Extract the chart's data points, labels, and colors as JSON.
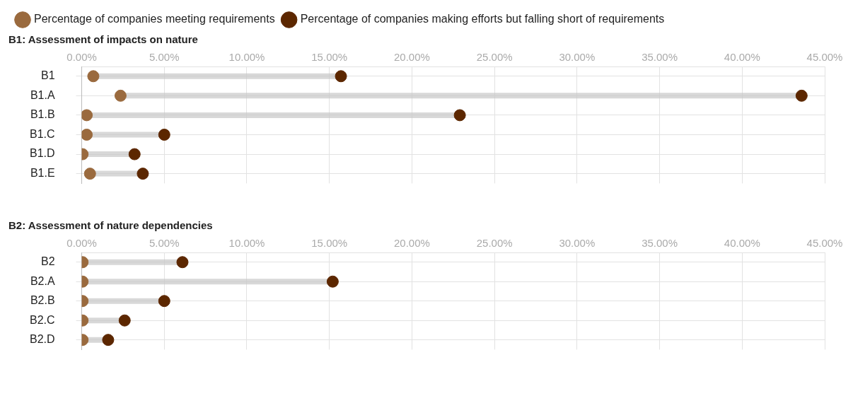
{
  "chart_data": [
    {
      "type": "scatter",
      "orientation": "horizontal",
      "title": "B1: Assessment of impacts on nature",
      "legend": "top",
      "grid": true,
      "marker": "circle",
      "categories": [
        "B1",
        "B1.A",
        "B1.B",
        "B1.C",
        "B1.D",
        "B1.E"
      ],
      "xlim": [
        0,
        45
      ],
      "xticks": [
        {
          "value": 0,
          "label": "0.00%"
        },
        {
          "value": 5,
          "label": "5.00%"
        },
        {
          "value": 10,
          "label": "10.00%"
        },
        {
          "value": 15,
          "label": "15.00%"
        },
        {
          "value": 20,
          "label": "20.00%"
        },
        {
          "value": 25,
          "label": "25.00%"
        },
        {
          "value": 30,
          "label": "30.00%"
        },
        {
          "value": 35,
          "label": "35.00%"
        },
        {
          "value": 40,
          "label": "40.00%"
        },
        {
          "value": 45,
          "label": "45.00%"
        }
      ],
      "series": [
        {
          "name": "Percentage of companies meeting requirements",
          "color": "#9a6a3e",
          "values": [
            0.7,
            2.35,
            0.3,
            0.3,
            0.05,
            0.5
          ]
        },
        {
          "name": "Percentage of companies making efforts but falling short of requirements",
          "color": "#5c2700",
          "values": [
            15.7,
            43.6,
            22.9,
            5.0,
            3.2,
            3.7
          ]
        }
      ]
    },
    {
      "type": "scatter",
      "orientation": "horizontal",
      "title": "B2: Assessment of nature dependencies",
      "grid": true,
      "marker": "circle",
      "categories": [
        "B2",
        "B2.A",
        "B2.B",
        "B2.C",
        "B2.D"
      ],
      "xlim": [
        0,
        45
      ],
      "xticks": [
        {
          "value": 0,
          "label": "0.00%"
        },
        {
          "value": 5,
          "label": "5.00%"
        },
        {
          "value": 10,
          "label": "10.00%"
        },
        {
          "value": 15,
          "label": "15.00%"
        },
        {
          "value": 20,
          "label": "20.00%"
        },
        {
          "value": 25,
          "label": "25.00%"
        },
        {
          "value": 30,
          "label": "30.00%"
        },
        {
          "value": 35,
          "label": "35.00%"
        },
        {
          "value": 40,
          "label": "40.00%"
        },
        {
          "value": 45,
          "label": "45.00%"
        }
      ],
      "series": [
        {
          "color": "#9a6a3e",
          "values": [
            0.05,
            0.05,
            0.05,
            0.05,
            0.05
          ]
        },
        {
          "color": "#5c2700",
          "values": [
            6.1,
            15.2,
            5.0,
            2.6,
            1.6
          ]
        }
      ]
    }
  ]
}
